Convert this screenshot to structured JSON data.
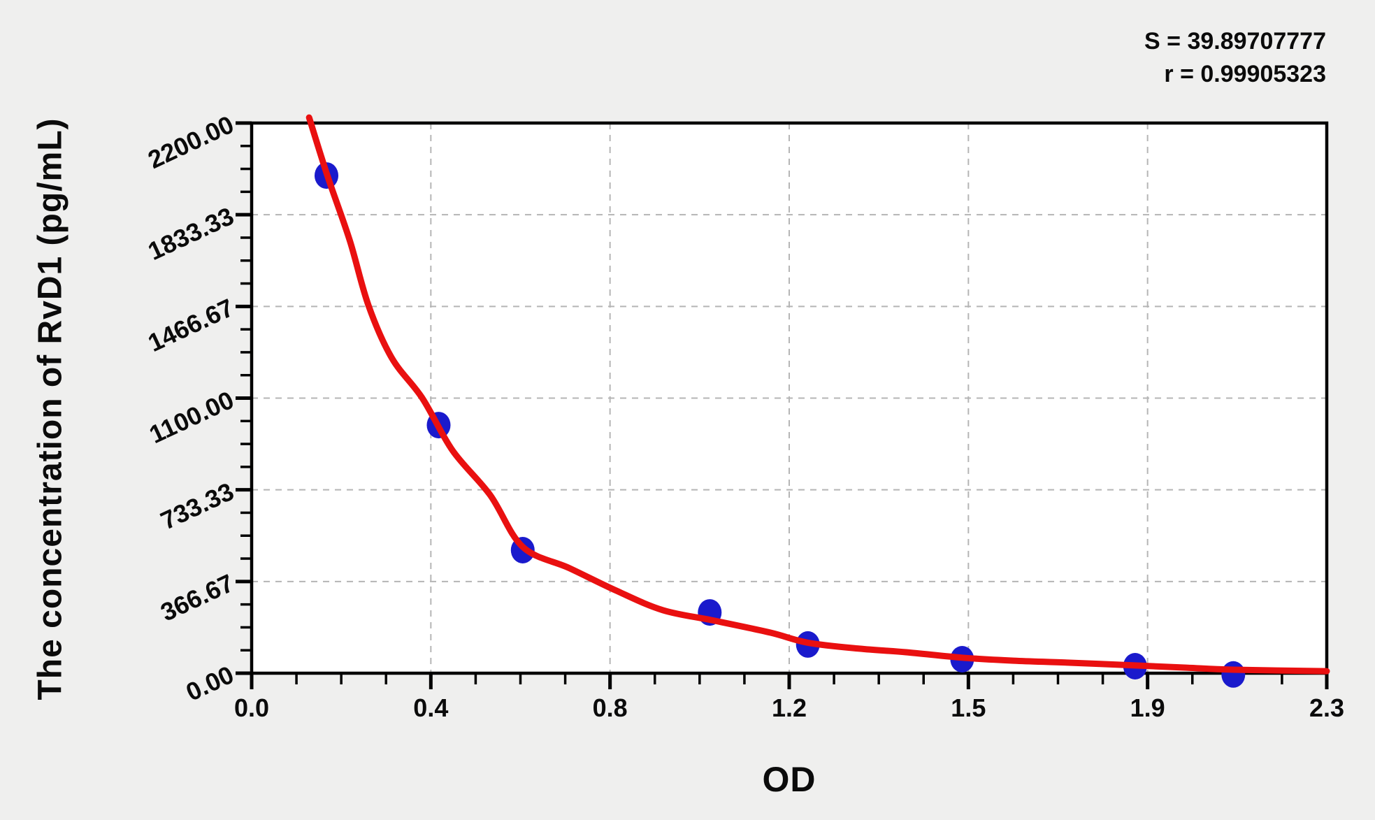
{
  "annotations": {
    "s_text": "S = 39.89707777",
    "r_text": "r = 0.99905323"
  },
  "chart_data": {
    "type": "scatter",
    "title": "",
    "xlabel": "OD",
    "ylabel": "The concentration of RvD1 (pg/mL)",
    "xlim": [
      0,
      2.3
    ],
    "ylim": [
      0,
      2200
    ],
    "grid": true,
    "legend": "none",
    "stats": {
      "S": 39.89707777,
      "r": 0.99905323
    },
    "x_tick_labels": [
      "0.0",
      "0.4",
      "0.8",
      "1.2",
      "1.5",
      "1.9",
      "2.3"
    ],
    "y_tick_labels": [
      "2200.00",
      "1833.33",
      "1466.67",
      "1100.00",
      "733.33",
      "366.67",
      "0.00"
    ],
    "minor_ticks_per_interval": 3,
    "points": {
      "series_name": "standards",
      "od": [
        0.16,
        0.4,
        0.58,
        0.98,
        1.19,
        1.52,
        1.89,
        2.1
      ],
      "concentration": [
        1990,
        992,
        492,
        243,
        115,
        56,
        28,
        -5
      ]
    },
    "fit_curve": {
      "series_name": "fitted standard curve",
      "od_conc_pairs": [
        [
          0.123,
          2222
        ],
        [
          0.162,
          1990
        ],
        [
          0.21,
          1730
        ],
        [
          0.25,
          1470
        ],
        [
          0.3,
          1260
        ],
        [
          0.365,
          1100
        ],
        [
          0.43,
          890
        ],
        [
          0.51,
          713
        ],
        [
          0.58,
          505
        ],
        [
          0.68,
          420
        ],
        [
          0.78,
          330
        ],
        [
          0.88,
          252
        ],
        [
          0.99,
          210
        ],
        [
          1.11,
          162
        ],
        [
          1.19,
          122
        ],
        [
          1.3,
          98
        ],
        [
          1.4,
          84
        ],
        [
          1.52,
          62
        ],
        [
          1.63,
          50
        ],
        [
          1.75,
          42
        ],
        [
          1.89,
          31
        ],
        [
          2.0,
          22
        ],
        [
          2.1,
          14
        ],
        [
          2.3,
          8
        ]
      ]
    },
    "colors": {
      "point": "#1a1acc",
      "curve": "#e91010",
      "frame": "#000000",
      "gridline": "#b5b5b5",
      "plot_background": "#ffffff",
      "page_background": "#efefee"
    }
  }
}
